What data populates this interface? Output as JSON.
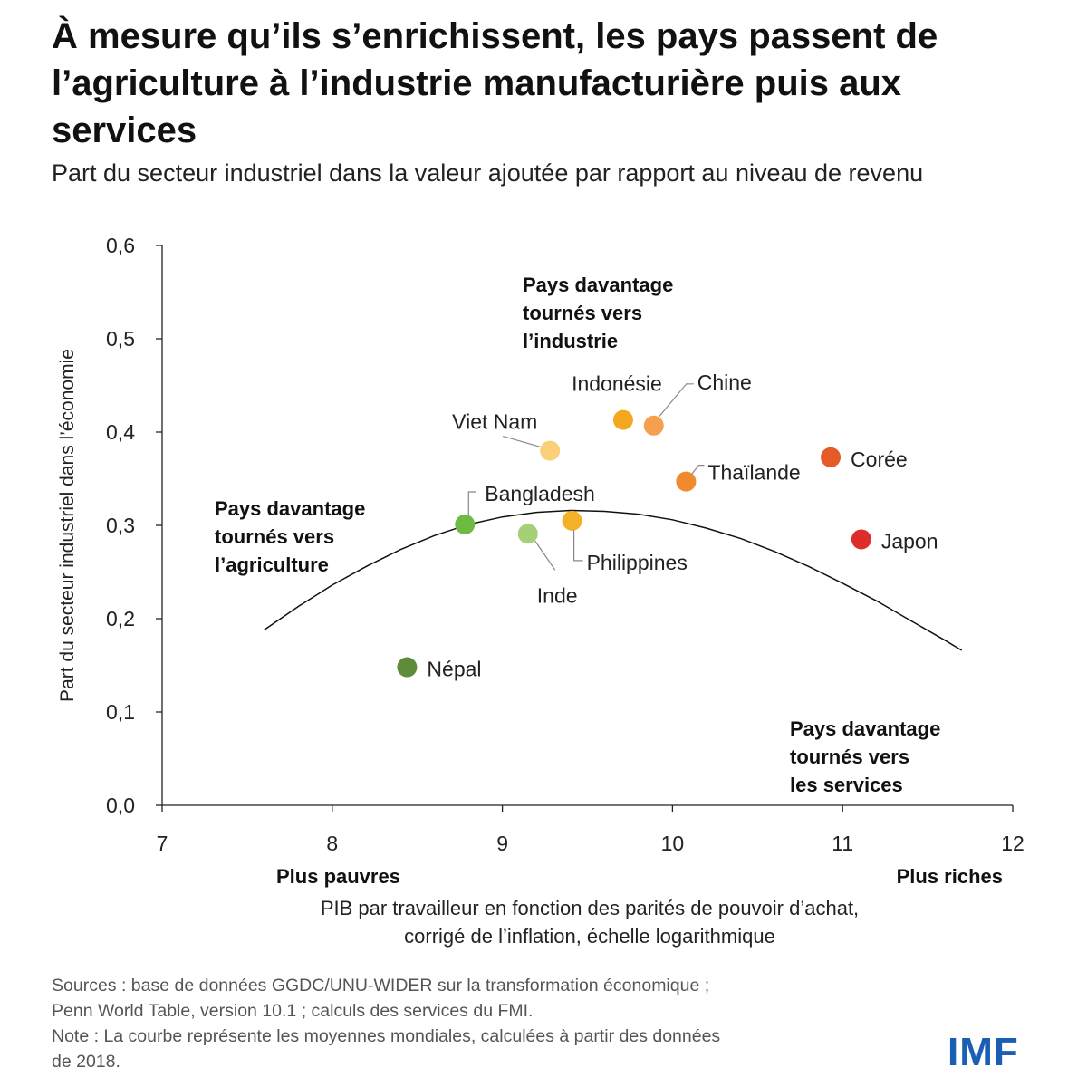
{
  "chart_data": {
    "type": "scatter",
    "title": "À mesure qu’ils s’enrichissent, les pays passent de l’agriculture à l’industrie manufacturière puis aux services",
    "subtitle": "Part du secteur industriel dans la valeur ajoutée par rapport au niveau de revenu",
    "xlabel_lines": [
      "PIB par travailleur en fonction des parités de pouvoir d’achat,",
      "corrigé de l’inflation, échelle logarithmique"
    ],
    "ylabel": "Part du secteur industriel dans l’économie",
    "xlim": [
      7,
      12
    ],
    "ylim": [
      0,
      0.6
    ],
    "xticks": [
      7,
      8,
      9,
      10,
      11,
      12
    ],
    "yticks": [
      "0,0",
      "0,1",
      "0,2",
      "0,3",
      "0,4",
      "0,5",
      "0,6"
    ],
    "x_ends": {
      "left": "Plus pauvres",
      "right": "Plus riches"
    },
    "points": [
      {
        "name": "Népal",
        "x": 8.44,
        "y": 0.148,
        "color": "#5f8c3a"
      },
      {
        "name": "Bangladesh",
        "x": 8.78,
        "y": 0.301,
        "color": "#6dbb44"
      },
      {
        "name": "Inde",
        "x": 9.15,
        "y": 0.291,
        "color": "#a5cf78"
      },
      {
        "name": "Viet Nam",
        "x": 9.28,
        "y": 0.38,
        "color": "#f9cf77"
      },
      {
        "name": "Philippines",
        "x": 9.41,
        "y": 0.305,
        "color": "#f5b02a"
      },
      {
        "name": "Indonésie",
        "x": 9.71,
        "y": 0.413,
        "color": "#f3a81f"
      },
      {
        "name": "Chine",
        "x": 9.89,
        "y": 0.407,
        "color": "#f6a04f"
      },
      {
        "name": "Thaïlande",
        "x": 10.08,
        "y": 0.347,
        "color": "#f08a2e"
      },
      {
        "name": "Corée",
        "x": 10.93,
        "y": 0.373,
        "color": "#e45a29"
      },
      {
        "name": "Japon",
        "x": 11.11,
        "y": 0.285,
        "color": "#dd2c2a"
      }
    ],
    "curve": {
      "description": "moyennes mondiales",
      "points": [
        [
          7.6,
          0.188
        ],
        [
          7.8,
          0.213
        ],
        [
          8.0,
          0.236
        ],
        [
          8.2,
          0.256
        ],
        [
          8.4,
          0.274
        ],
        [
          8.6,
          0.289
        ],
        [
          8.8,
          0.301
        ],
        [
          9.0,
          0.309
        ],
        [
          9.2,
          0.314
        ],
        [
          9.4,
          0.316
        ],
        [
          9.6,
          0.315
        ],
        [
          9.8,
          0.312
        ],
        [
          10.0,
          0.306
        ],
        [
          10.2,
          0.297
        ],
        [
          10.4,
          0.286
        ],
        [
          10.6,
          0.272
        ],
        [
          10.8,
          0.256
        ],
        [
          11.0,
          0.238
        ],
        [
          11.2,
          0.219
        ],
        [
          11.4,
          0.198
        ],
        [
          11.6,
          0.177
        ],
        [
          11.7,
          0.166
        ]
      ]
    },
    "annotations": [
      {
        "id": "industrie",
        "lines": [
          "Pays davantage",
          "tournés vers",
          "l’industrie"
        ]
      },
      {
        "id": "agriculture",
        "lines": [
          "Pays davantage",
          "tournés vers",
          "l’agriculture"
        ]
      },
      {
        "id": "services",
        "lines": [
          "Pays davantage",
          "tournés vers",
          "les services"
        ]
      }
    ]
  },
  "footer": {
    "sources_line1": "Sources : base de données GGDC/UNU-WIDER sur la transformation économique ;",
    "sources_line2": "Penn World Table, version 10.1 ; calculs des services du FMI.",
    "note_line1": "Note : La courbe représente les moyennes mondiales, calculées à partir des données",
    "note_line2": "de 2018."
  },
  "logo": "IMF"
}
